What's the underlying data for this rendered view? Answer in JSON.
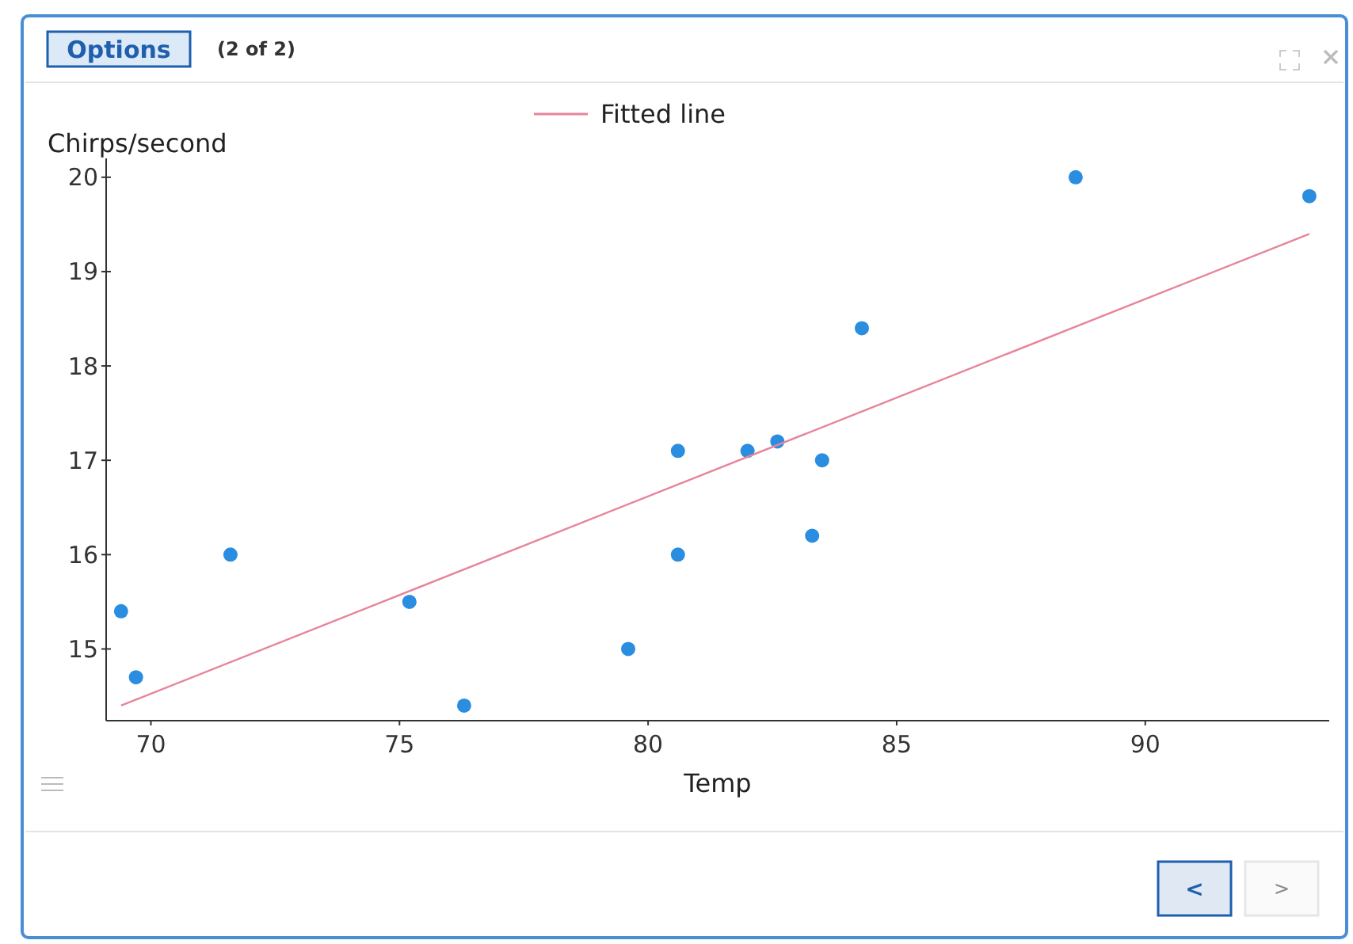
{
  "chart_data": {
    "type": "scatter",
    "xlabel": "Temp",
    "ylabel": "Chirps/second",
    "xlim": [
      69.1,
      93.7
    ],
    "ylim": [
      14.24,
      20.2
    ],
    "xticks": [
      70,
      75,
      80,
      85,
      90
    ],
    "yticks": [
      15,
      16,
      17,
      18,
      19,
      20
    ],
    "grid": false,
    "legend": "top",
    "series": [
      {
        "marker": "circle",
        "color": "#2a8de0",
        "x": [
          88.6,
          71.6,
          93.3,
          84.3,
          80.6,
          75.2,
          69.7,
          82,
          69.4,
          83.3,
          79.6,
          82.6,
          80.6,
          83.5,
          76.3
        ],
        "values": [
          20,
          16,
          19.8,
          18.4,
          17.1,
          15.5,
          14.7,
          17.1,
          15.4,
          16.2,
          15,
          17.2,
          16,
          17,
          14.4
        ]
      },
      {
        "type": "line",
        "marker": "none",
        "name": "Fitted line",
        "color": "#e8849a",
        "x": [
          69.4,
          93.3
        ],
        "values": [
          14.4,
          19.4
        ]
      }
    ],
    "annotations": [
      "Options",
      "(2 of 2)",
      "<",
      ">"
    ]
  }
}
